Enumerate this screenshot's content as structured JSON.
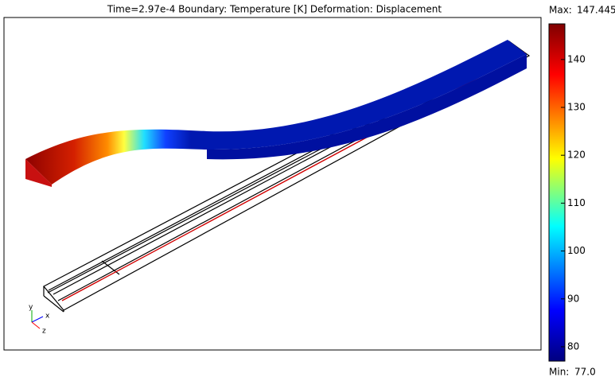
{
  "chart_data": {
    "type": "colorbar-plot",
    "title": "Time=2.97e-4    Boundary: Temperature [K]    Deformation: Displacement",
    "max": {
      "label": "Max:",
      "value": 147.445
    },
    "min": {
      "label": "Min:",
      "value": 77,
      "value_label": "77.0"
    },
    "ylim": [
      77,
      147.445
    ],
    "yticks": [
      80,
      90,
      100,
      110,
      120,
      130,
      140
    ],
    "colormap": [
      "#7f0000",
      "#ff0000",
      "#ffff00",
      "#00ffff",
      "#0000ff",
      "#00007f"
    ],
    "triad": [
      "x",
      "y",
      "z"
    ]
  }
}
